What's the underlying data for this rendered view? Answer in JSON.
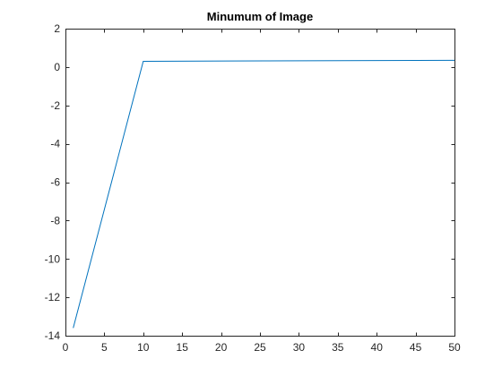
{
  "chart_data": {
    "type": "line",
    "title": "Minumum of Image",
    "xlabel": "",
    "ylabel": "",
    "xlim": [
      0,
      50
    ],
    "ylim": [
      -14,
      2
    ],
    "xticks": [
      0,
      5,
      10,
      15,
      20,
      25,
      30,
      35,
      40,
      45,
      50
    ],
    "yticks": [
      2,
      0,
      -2,
      -4,
      -6,
      -8,
      -10,
      -12,
      -14
    ],
    "grid": false,
    "legend": "none",
    "series": [
      {
        "color": "#0072BD",
        "x": [
          1,
          10,
          50
        ],
        "y": [
          -13.6,
          0.3,
          0.35
        ]
      }
    ]
  }
}
